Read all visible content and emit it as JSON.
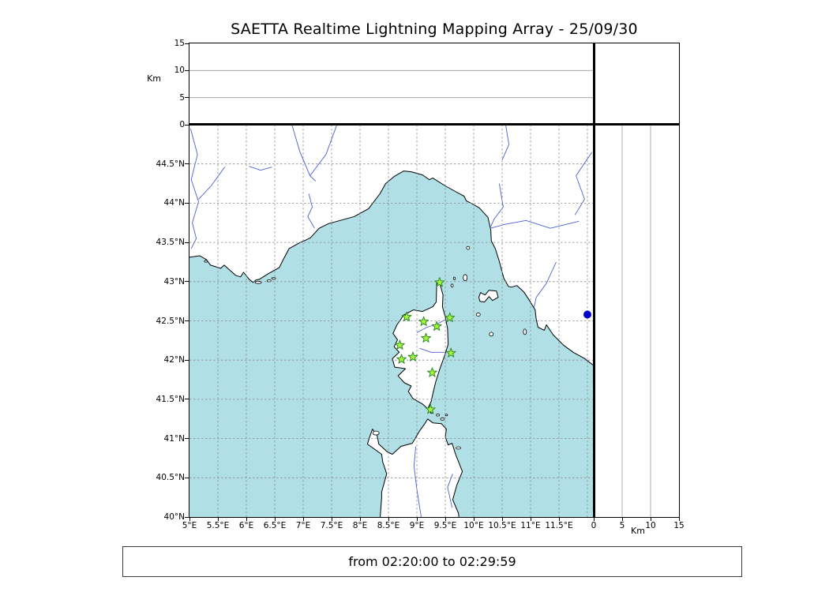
{
  "title": "SAETTA Realtime Lightning Mapping Array - 25/09/30",
  "status_bar": {
    "text": "from 02:20:00 to 02:29:59"
  },
  "axes": {
    "km_label": "Km"
  },
  "chart_data": {
    "type": "scatter",
    "title": "SAETTA Realtime Lightning Mapping Array - 25/09/30",
    "subtitle": "from 02:20:00 to 02:29:59",
    "map_panel": {
      "lon_range": [
        5,
        12.111
      ],
      "lat_range": [
        40,
        45
      ],
      "x_tick_labels": [
        "5°E",
        "5.5°E",
        "6°E",
        "6.5°E",
        "7°E",
        "7.5°E",
        "8°E",
        "8.5°E",
        "9°E",
        "9.5°E",
        "10°E",
        "10.5°E",
        "11°E",
        "11.5°E"
      ],
      "x_tick_values": [
        5,
        5.5,
        6,
        6.5,
        7,
        7.5,
        8,
        8.5,
        9,
        9.5,
        10,
        10.5,
        11,
        11.5
      ],
      "y_tick_labels": [
        "44.5°N",
        "44°N",
        "43.5°N",
        "43°N",
        "42.5°N",
        "42°N",
        "41.5°N",
        "41°N",
        "40.5°N",
        "40°N"
      ],
      "y_tick_values": [
        44.5,
        44,
        43.5,
        43,
        42.5,
        42,
        41.5,
        41,
        40.5,
        40
      ],
      "grid": "dashed gray every 0.5 degree",
      "sea_color": "#b0e0e6",
      "land_color": "#ffffff",
      "coast_color": "#000000",
      "river_color": "#4a5fd0",
      "grid_color": "#8c8c8c"
    },
    "altitude_panel_top": {
      "ylabel": "Km",
      "ylim": [
        0,
        15
      ],
      "tick_labels": [
        "0",
        "5",
        "10",
        "15"
      ],
      "tick_values": [
        0,
        5,
        10,
        15
      ],
      "gridlines": [
        5,
        10
      ],
      "points": []
    },
    "altitude_panel_right": {
      "xlabel": "Km",
      "xlim": [
        0,
        15
      ],
      "tick_labels": [
        "0",
        "5",
        "10",
        "15"
      ],
      "tick_values": [
        0,
        5,
        10,
        15
      ],
      "gridlines": [
        5,
        10
      ],
      "points": []
    },
    "stations": {
      "marker": "star",
      "fill": "#a9f838",
      "edge": "#2d8a2d",
      "points": [
        [
          9.4,
          42.99
        ],
        [
          8.82,
          42.55
        ],
        [
          9.12,
          42.49
        ],
        [
          9.58,
          42.54
        ],
        [
          9.35,
          42.43
        ],
        [
          9.16,
          42.28
        ],
        [
          8.7,
          42.19
        ],
        [
          9.6,
          42.09
        ],
        [
          8.73,
          42.01
        ],
        [
          8.93,
          42.04
        ],
        [
          9.27,
          41.84
        ],
        [
          9.24,
          41.37
        ]
      ]
    },
    "detection_dot": {
      "marker": "circle",
      "color": "#0000cc",
      "lon": 12.0,
      "lat": 42.58,
      "radius_px": 5
    },
    "lightning_sources": []
  }
}
